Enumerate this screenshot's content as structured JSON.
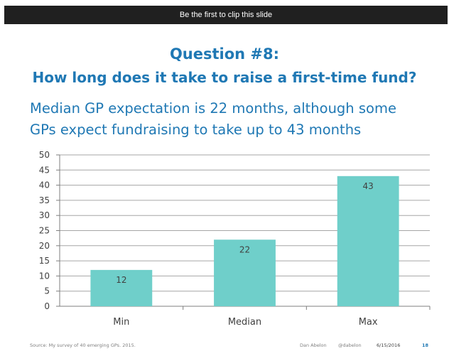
{
  "clip_bar": {
    "label": "Be the first to clip this slide"
  },
  "slide": {
    "title_line1": "Question #8:",
    "title_line2": "How long does it take to raise a first-time fund?",
    "subtitle_line1": "Median GP expectation is 22 months, although some",
    "subtitle_line2": "GPs expect fundraising to take up to 43 months",
    "footer": {
      "source": "Source: My survey of 40 emerging GPs. 2015.",
      "author": "Dan Abelon",
      "handle": "@dabelon",
      "date": "6/15/2016",
      "page_number": "18"
    }
  },
  "chart_data": {
    "type": "bar",
    "categories": [
      "Min",
      "Median",
      "Max"
    ],
    "values": [
      12,
      22,
      43
    ],
    "data_labels": [
      "12",
      "22",
      "43"
    ],
    "yticks": [
      "0",
      "5",
      "10",
      "15",
      "20",
      "25",
      "30",
      "35",
      "40",
      "45",
      "50"
    ],
    "ylim": [
      0,
      50
    ],
    "grid": true,
    "bar_color": "#6fcfca",
    "title": "",
    "xlabel": "",
    "ylabel": ""
  }
}
